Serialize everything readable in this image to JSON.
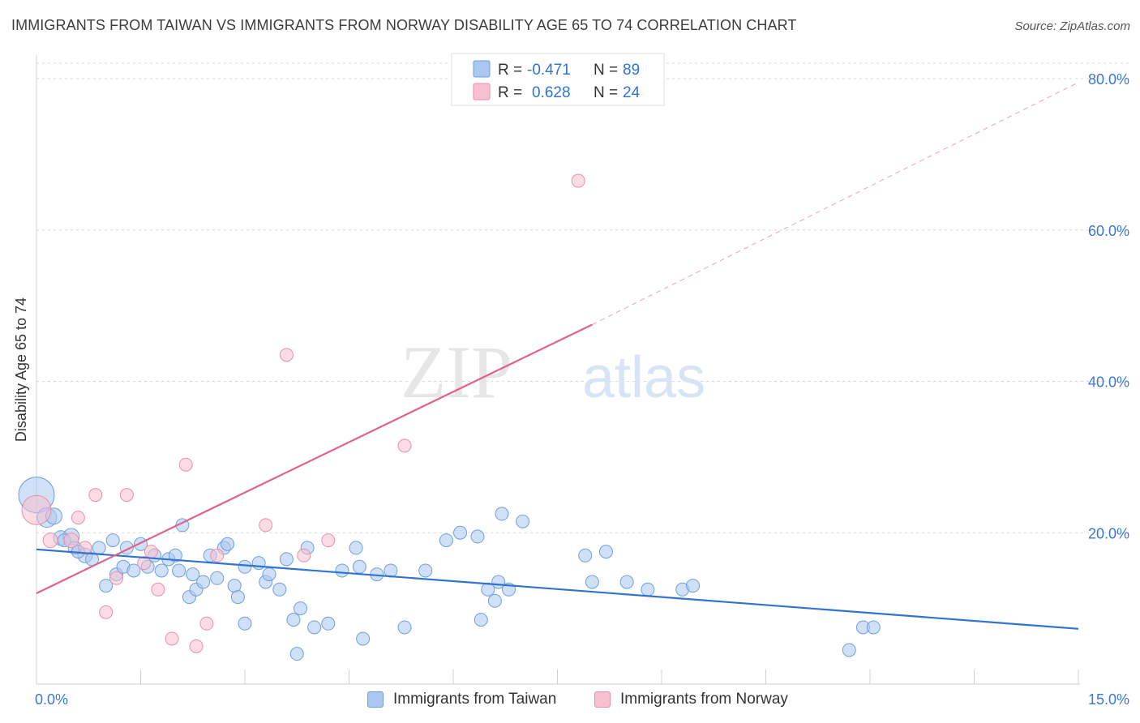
{
  "title": "IMMIGRANTS FROM TAIWAN VS IMMIGRANTS FROM NORWAY DISABILITY AGE 65 TO 74 CORRELATION CHART",
  "source": "Source: ZipAtlas.com",
  "watermark": {
    "zip": "ZIP",
    "atlas": "atlas"
  },
  "colors": {
    "taiwan_fill": "#a9c7f0",
    "taiwan_stroke": "#6f9fdc",
    "taiwan_line": "#2f74d0",
    "norway_fill": "#f7bfd0",
    "norway_stroke": "#e98fab",
    "norway_line": "#e0628a",
    "axis_label": "#3a78d0",
    "grid": "#d8d8d8"
  },
  "stats_legend": [
    {
      "r_label": "R = ",
      "r_value": "-0.471",
      "n_label": "N = ",
      "n_value": "89"
    },
    {
      "r_label": "R = ",
      "r_value": "0.628",
      "n_label": "N = ",
      "n_value": "24"
    }
  ],
  "chart_data": {
    "type": "scatter",
    "ylabel": "Disability Age 65 to 74",
    "xlim": [
      0,
      15
    ],
    "ylim": [
      0,
      80
    ],
    "x_tick_labels": [
      "0.0%",
      "15.0%"
    ],
    "y_ticks": [
      20,
      40,
      60,
      80
    ],
    "y_tick_labels": [
      "20.0%",
      "40.0%",
      "60.0%",
      "80.0%"
    ],
    "grid": "horizontal dashed",
    "legend_position": "top-center",
    "series": [
      {
        "name": "Immigrants from Taiwan",
        "color": "#a9c7f0",
        "trend": {
          "x0": 0,
          "y0": 17.8,
          "x1": 15,
          "y1": 7.3
        },
        "points": [
          [
            0.0,
            25.0,
            22
          ],
          [
            0.15,
            22.0,
            12
          ],
          [
            0.25,
            22.2,
            10
          ],
          [
            0.35,
            19.3,
            9
          ],
          [
            0.5,
            19.5,
            10
          ],
          [
            0.55,
            18.0,
            8
          ],
          [
            0.7,
            17.0,
            9
          ],
          [
            0.9,
            18.0,
            8
          ],
          [
            1.1,
            19.0,
            8
          ],
          [
            1.3,
            18.0,
            8
          ],
          [
            1.5,
            18.5,
            8
          ],
          [
            1.7,
            17.0,
            8
          ],
          [
            0.4,
            19.0,
            8
          ],
          [
            0.6,
            17.5,
            8
          ],
          [
            0.8,
            16.5,
            8
          ],
          [
            1.0,
            13.0,
            8
          ],
          [
            1.15,
            14.5,
            8
          ],
          [
            1.25,
            15.5,
            8
          ],
          [
            1.4,
            15.0,
            8
          ],
          [
            1.6,
            15.5,
            8
          ],
          [
            1.8,
            15.0,
            8
          ],
          [
            1.9,
            16.5,
            8
          ],
          [
            2.0,
            17.0,
            8
          ],
          [
            2.05,
            15.0,
            8
          ],
          [
            2.2,
            11.5,
            8
          ],
          [
            2.25,
            14.5,
            8
          ],
          [
            2.3,
            12.5,
            8
          ],
          [
            2.1,
            21.0,
            8
          ],
          [
            2.4,
            13.5,
            8
          ],
          [
            2.5,
            17.0,
            8
          ],
          [
            2.6,
            14.0,
            8
          ],
          [
            2.7,
            18.0,
            8
          ],
          [
            2.75,
            18.5,
            8
          ],
          [
            2.85,
            13.0,
            8
          ],
          [
            2.9,
            11.5,
            8
          ],
          [
            3.0,
            8.0,
            8
          ],
          [
            3.0,
            15.5,
            8
          ],
          [
            3.2,
            16.0,
            8
          ],
          [
            3.3,
            13.5,
            8
          ],
          [
            3.35,
            14.5,
            8
          ],
          [
            3.5,
            12.5,
            8
          ],
          [
            3.6,
            16.5,
            8
          ],
          [
            3.7,
            8.5,
            8
          ],
          [
            3.75,
            4.0,
            8
          ],
          [
            3.8,
            10.0,
            8
          ],
          [
            3.9,
            18.0,
            8
          ],
          [
            4.0,
            7.5,
            8
          ],
          [
            4.2,
            8.0,
            8
          ],
          [
            4.4,
            15.0,
            8
          ],
          [
            4.6,
            18.0,
            8
          ],
          [
            4.65,
            15.5,
            8
          ],
          [
            4.7,
            6.0,
            8
          ],
          [
            4.9,
            14.5,
            8
          ],
          [
            5.1,
            15.0,
            8
          ],
          [
            5.3,
            7.5,
            8
          ],
          [
            5.6,
            15.0,
            8
          ],
          [
            5.9,
            19.0,
            8
          ],
          [
            6.1,
            20.0,
            8
          ],
          [
            6.35,
            19.5,
            8
          ],
          [
            6.4,
            8.5,
            8
          ],
          [
            6.5,
            12.5,
            8
          ],
          [
            6.6,
            11.0,
            8
          ],
          [
            6.65,
            13.5,
            8
          ],
          [
            6.7,
            22.5,
            8
          ],
          [
            6.8,
            12.5,
            8
          ],
          [
            7.0,
            21.5,
            8
          ],
          [
            7.9,
            17.0,
            8
          ],
          [
            8.0,
            13.5,
            8
          ],
          [
            8.2,
            17.5,
            8
          ],
          [
            8.5,
            13.5,
            8
          ],
          [
            8.8,
            12.5,
            8
          ],
          [
            9.3,
            12.5,
            8
          ],
          [
            9.45,
            13.0,
            8
          ],
          [
            11.7,
            4.5,
            8
          ],
          [
            11.9,
            7.5,
            8
          ],
          [
            12.05,
            7.5,
            8
          ]
        ]
      },
      {
        "name": "Immigrants from Norway",
        "color": "#f7bfd0",
        "trend": {
          "x0": 0,
          "y0": 12.0,
          "x1": 8.0,
          "y1": 47.5,
          "dash_x1": 15,
          "dash_y1": 79.5
        },
        "points": [
          [
            0.0,
            23.0,
            18
          ],
          [
            0.2,
            19.0,
            9
          ],
          [
            0.5,
            19.0,
            9
          ],
          [
            0.6,
            22.0,
            8
          ],
          [
            0.7,
            18.0,
            8
          ],
          [
            0.85,
            25.0,
            8
          ],
          [
            1.0,
            9.5,
            8
          ],
          [
            1.15,
            14.0,
            8
          ],
          [
            1.3,
            25.0,
            8
          ],
          [
            1.55,
            16.0,
            8
          ],
          [
            1.65,
            17.5,
            8
          ],
          [
            1.75,
            12.5,
            8
          ],
          [
            1.95,
            6.0,
            8
          ],
          [
            2.15,
            29.0,
            8
          ],
          [
            2.3,
            5.0,
            8
          ],
          [
            2.45,
            8.0,
            8
          ],
          [
            2.6,
            17.0,
            8
          ],
          [
            3.3,
            21.0,
            8
          ],
          [
            3.6,
            43.5,
            8
          ],
          [
            3.85,
            17.0,
            8
          ],
          [
            4.2,
            19.0,
            8
          ],
          [
            5.3,
            31.5,
            8
          ],
          [
            7.8,
            66.5,
            8
          ]
        ]
      }
    ]
  },
  "bottom_legend": [
    "Immigrants from Taiwan",
    "Immigrants from Norway"
  ]
}
